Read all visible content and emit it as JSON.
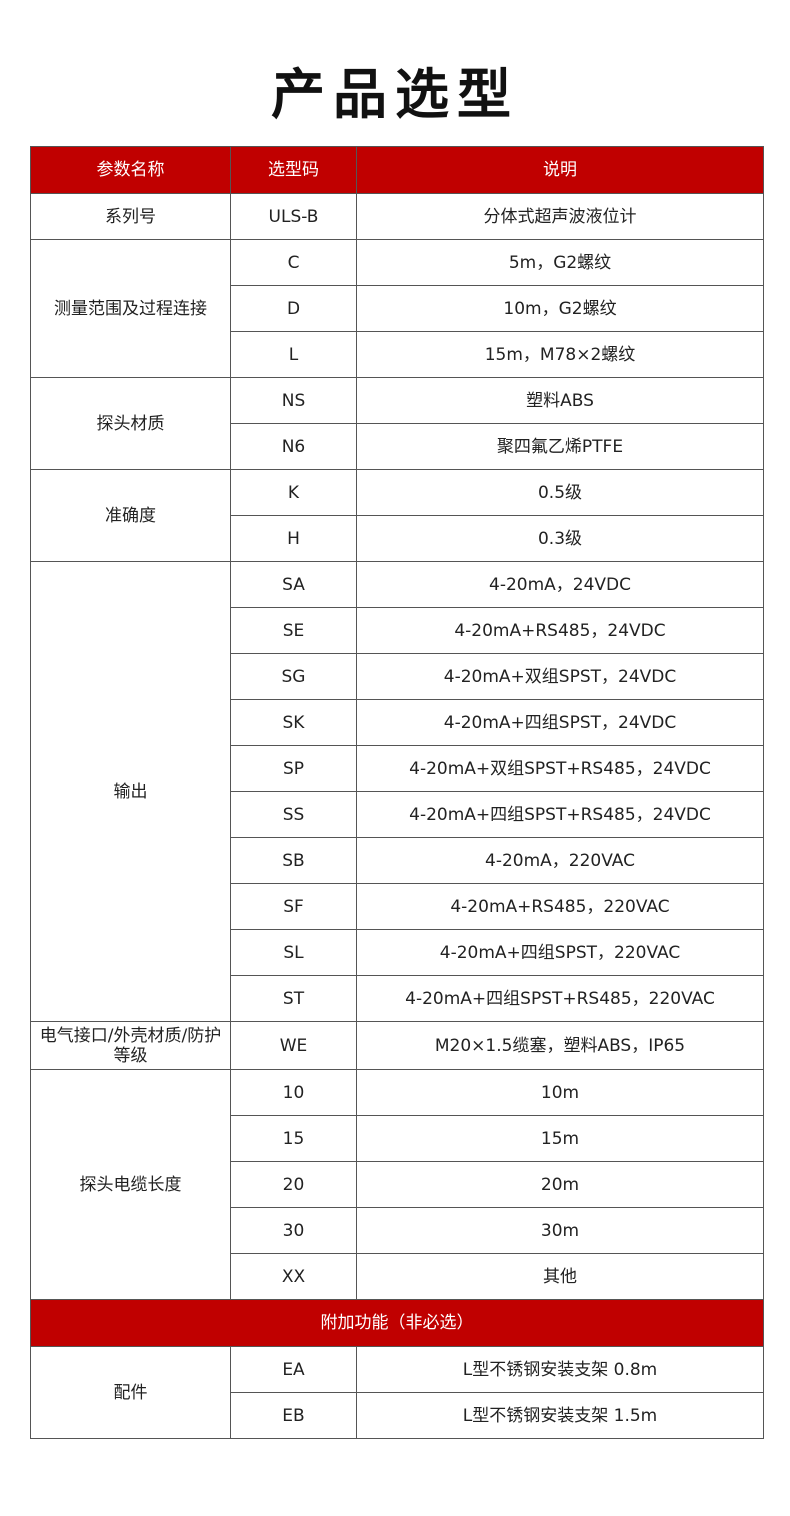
{
  "title": "产品选型",
  "headers": [
    "参数名称",
    "选型码",
    "说明"
  ],
  "groups": [
    {
      "name": "系列号",
      "items": [
        {
          "code": "ULS-B",
          "desc": "分体式超声波液位计"
        }
      ]
    },
    {
      "name": "测量范围及过程连接",
      "items": [
        {
          "code": "C",
          "desc": "5m，G2螺纹"
        },
        {
          "code": "D",
          "desc": "10m，G2螺纹"
        },
        {
          "code": "L",
          "desc": "15m，M78×2螺纹"
        }
      ]
    },
    {
      "name": "探头材质",
      "items": [
        {
          "code": "NS",
          "desc": "塑料ABS"
        },
        {
          "code": "N6",
          "desc": "聚四氟乙烯PTFE"
        }
      ]
    },
    {
      "name": "准确度",
      "items": [
        {
          "code": "K",
          "desc": "0.5级"
        },
        {
          "code": "H",
          "desc": "0.3级"
        }
      ]
    },
    {
      "name": "输出",
      "items": [
        {
          "code": "SA",
          "desc": "4-20mA，24VDC"
        },
        {
          "code": "SE",
          "desc": "4-20mA+RS485，24VDC"
        },
        {
          "code": "SG",
          "desc": "4-20mA+双组SPST，24VDC"
        },
        {
          "code": "SK",
          "desc": "4-20mA+四组SPST，24VDC"
        },
        {
          "code": "SP",
          "desc": "4-20mA+双组SPST+RS485，24VDC"
        },
        {
          "code": "SS",
          "desc": "4-20mA+四组SPST+RS485，24VDC"
        },
        {
          "code": "SB",
          "desc": "4-20mA，220VAC"
        },
        {
          "code": "SF",
          "desc": "4-20mA+RS485，220VAC"
        },
        {
          "code": "SL",
          "desc": "4-20mA+四组SPST，220VAC"
        },
        {
          "code": "ST",
          "desc": "4-20mA+四组SPST+RS485，220VAC"
        }
      ]
    },
    {
      "name": "电气接口/外壳材质/防护等级",
      "items": [
        {
          "code": "WE",
          "desc": "M20×1.5缆塞，塑料ABS，IP65"
        }
      ]
    },
    {
      "name": "探头电缆长度",
      "items": [
        {
          "code": "10",
          "desc": "10m"
        },
        {
          "code": "15",
          "desc": "15m"
        },
        {
          "code": "20",
          "desc": "20m"
        },
        {
          "code": "30",
          "desc": "30m"
        },
        {
          "code": "XX",
          "desc": "其他"
        }
      ]
    }
  ],
  "section": "附加功能（非必选）",
  "extra_groups": [
    {
      "name": "配件",
      "items": [
        {
          "code": "EA",
          "desc": "L型不锈钢安装支架 0.8m"
        },
        {
          "code": "EB",
          "desc": "L型不锈钢安装支架 1.5m"
        }
      ]
    }
  ],
  "colors": {
    "header_bg": "#c00000",
    "header_text": "#ffffff"
  }
}
